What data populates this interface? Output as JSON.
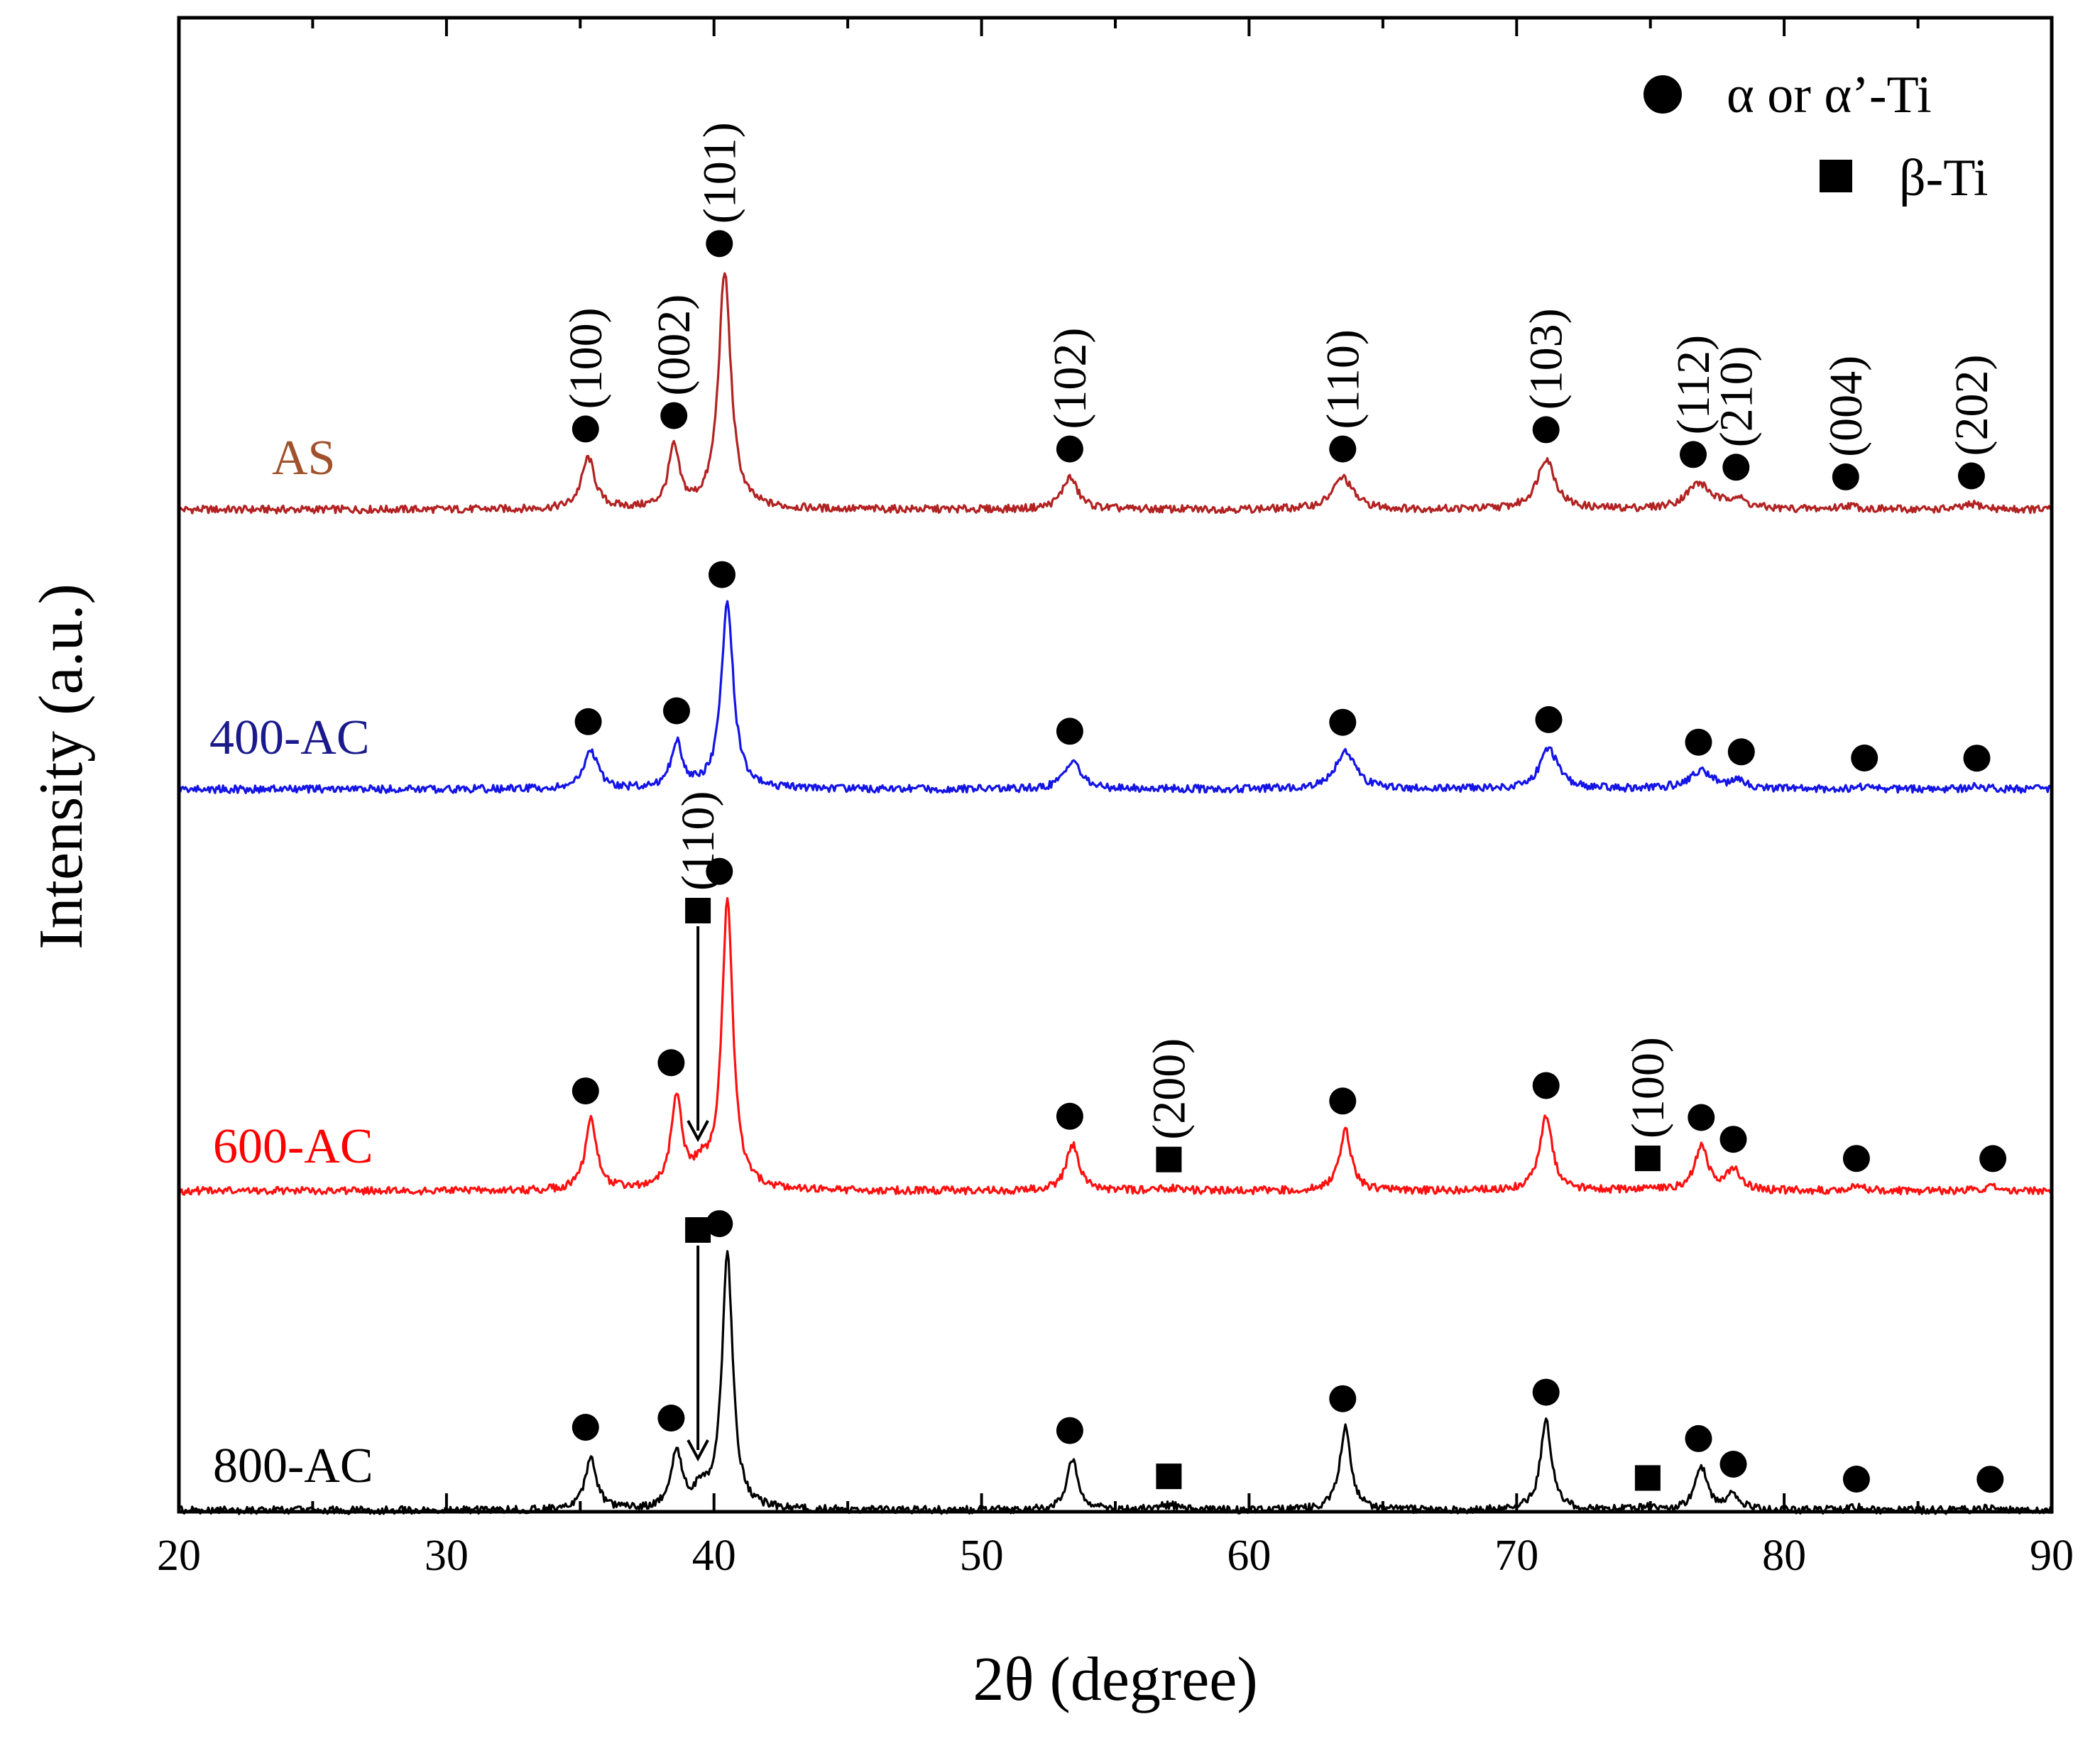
{
  "chart_data": {
    "type": "line",
    "title": "",
    "xlabel": "2θ (degree)",
    "ylabel": "Intensity (a.u.)",
    "xlim": [
      20,
      90
    ],
    "xticks": [
      20,
      30,
      40,
      50,
      60,
      70,
      80,
      90
    ],
    "yticks_shown": false,
    "legend": {
      "position": "top-right",
      "items": [
        {
          "marker": "circle",
          "label": "α or α’-Ti"
        },
        {
          "marker": "square",
          "label": "β-Ti"
        }
      ]
    },
    "series": [
      {
        "name": "AS",
        "color": "#b22222",
        "label_color": "#a0522d",
        "peaks": [
          {
            "x": 35.3,
            "h": 0.4,
            "w": 0.3
          },
          {
            "x": 38.5,
            "h": 0.47,
            "w": 0.25
          },
          {
            "x": 40.4,
            "h": 1.85,
            "w": 0.28
          },
          {
            "x": 53.3,
            "h": 0.25,
            "w": 0.35
          },
          {
            "x": 63.5,
            "h": 0.25,
            "w": 0.45
          },
          {
            "x": 71.1,
            "h": 0.4,
            "w": 0.4
          },
          {
            "x": 76.8,
            "h": 0.2,
            "w": 0.55
          },
          {
            "x": 78.2,
            "h": 0.08,
            "w": 0.4
          },
          {
            "x": 82.4,
            "h": 0.03,
            "w": 0.4
          },
          {
            "x": 87.1,
            "h": 0.04,
            "w": 0.4
          }
        ]
      },
      {
        "name": "400-AC",
        "color": "#1414e6",
        "label_color": "#1a1a8c",
        "peaks": [
          {
            "x": 35.4,
            "h": 0.3,
            "w": 0.3
          },
          {
            "x": 38.6,
            "h": 0.36,
            "w": 0.25
          },
          {
            "x": 40.5,
            "h": 1.45,
            "w": 0.27
          },
          {
            "x": 53.4,
            "h": 0.23,
            "w": 0.35
          },
          {
            "x": 63.6,
            "h": 0.3,
            "w": 0.45
          },
          {
            "x": 71.2,
            "h": 0.32,
            "w": 0.4
          },
          {
            "x": 76.9,
            "h": 0.14,
            "w": 0.55
          },
          {
            "x": 78.3,
            "h": 0.05,
            "w": 0.4
          },
          {
            "x": 83.0,
            "h": 0.02,
            "w": 0.4
          },
          {
            "x": 87.2,
            "h": 0.02,
            "w": 0.4
          }
        ]
      },
      {
        "name": "600-AC",
        "color": "#ff1010",
        "label_color": "#ff0000",
        "peaks": [
          {
            "x": 35.4,
            "h": 0.55,
            "w": 0.26
          },
          {
            "x": 38.6,
            "h": 0.72,
            "w": 0.24
          },
          {
            "x": 39.5,
            "h": 0.15,
            "w": 0.35
          },
          {
            "x": 40.5,
            "h": 2.25,
            "w": 0.25
          },
          {
            "x": 53.4,
            "h": 0.36,
            "w": 0.28
          },
          {
            "x": 57.0,
            "h": 0.02,
            "w": 0.5
          },
          {
            "x": 63.6,
            "h": 0.48,
            "w": 0.26
          },
          {
            "x": 71.1,
            "h": 0.6,
            "w": 0.28
          },
          {
            "x": 74.9,
            "h": 0.02,
            "w": 0.5
          },
          {
            "x": 76.9,
            "h": 0.34,
            "w": 0.3
          },
          {
            "x": 78.1,
            "h": 0.16,
            "w": 0.3
          },
          {
            "x": 82.7,
            "h": 0.03,
            "w": 0.4
          },
          {
            "x": 87.8,
            "h": 0.03,
            "w": 0.4
          }
        ]
      },
      {
        "name": "800-AC",
        "color": "#000000",
        "label_color": "#000000",
        "peaks": [
          {
            "x": 35.4,
            "h": 0.42,
            "w": 0.25
          },
          {
            "x": 38.6,
            "h": 0.45,
            "w": 0.24
          },
          {
            "x": 39.5,
            "h": 0.12,
            "w": 0.35
          },
          {
            "x": 40.5,
            "h": 2.0,
            "w": 0.24
          },
          {
            "x": 53.4,
            "h": 0.4,
            "w": 0.26
          },
          {
            "x": 57.0,
            "h": 0.04,
            "w": 0.5
          },
          {
            "x": 63.6,
            "h": 0.65,
            "w": 0.25
          },
          {
            "x": 71.1,
            "h": 0.7,
            "w": 0.25
          },
          {
            "x": 74.9,
            "h": 0.02,
            "w": 0.5
          },
          {
            "x": 76.9,
            "h": 0.33,
            "w": 0.28
          },
          {
            "x": 78.1,
            "h": 0.12,
            "w": 0.28
          },
          {
            "x": 82.7,
            "h": 0.02,
            "w": 0.4
          },
          {
            "x": 87.6,
            "h": 0.02,
            "w": 0.4
          }
        ]
      }
    ],
    "markers": {
      "AS": [
        {
          "x": 35.2,
          "shape": "circle"
        },
        {
          "x": 38.5,
          "shape": "circle"
        },
        {
          "x": 40.2,
          "shape": "circle"
        },
        {
          "x": 53.3,
          "shape": "circle"
        },
        {
          "x": 63.5,
          "shape": "circle"
        },
        {
          "x": 71.1,
          "shape": "circle"
        },
        {
          "x": 76.6,
          "shape": "circle"
        },
        {
          "x": 78.2,
          "shape": "circle"
        },
        {
          "x": 82.3,
          "shape": "circle"
        },
        {
          "x": 87.0,
          "shape": "circle"
        }
      ],
      "400-AC": [
        {
          "x": 35.3,
          "shape": "circle"
        },
        {
          "x": 38.6,
          "shape": "circle"
        },
        {
          "x": 40.3,
          "shape": "circle"
        },
        {
          "x": 53.3,
          "shape": "circle"
        },
        {
          "x": 63.5,
          "shape": "circle"
        },
        {
          "x": 71.2,
          "shape": "circle"
        },
        {
          "x": 76.8,
          "shape": "circle"
        },
        {
          "x": 78.4,
          "shape": "circle"
        },
        {
          "x": 83.0,
          "shape": "circle"
        },
        {
          "x": 87.2,
          "shape": "circle"
        }
      ],
      "600-AC": [
        {
          "x": 35.2,
          "shape": "circle"
        },
        {
          "x": 38.4,
          "shape": "circle"
        },
        {
          "x": 39.4,
          "shape": "square"
        },
        {
          "x": 40.2,
          "shape": "circle"
        },
        {
          "x": 53.3,
          "shape": "circle"
        },
        {
          "x": 57.0,
          "shape": "square"
        },
        {
          "x": 63.5,
          "shape": "circle"
        },
        {
          "x": 71.1,
          "shape": "circle"
        },
        {
          "x": 74.9,
          "shape": "square"
        },
        {
          "x": 76.9,
          "shape": "circle"
        },
        {
          "x": 78.1,
          "shape": "circle"
        },
        {
          "x": 82.7,
          "shape": "circle"
        },
        {
          "x": 87.8,
          "shape": "circle"
        }
      ],
      "800-AC": [
        {
          "x": 35.2,
          "shape": "circle"
        },
        {
          "x": 38.4,
          "shape": "circle"
        },
        {
          "x": 39.4,
          "shape": "square"
        },
        {
          "x": 40.2,
          "shape": "circle"
        },
        {
          "x": 53.3,
          "shape": "circle"
        },
        {
          "x": 57.0,
          "shape": "square"
        },
        {
          "x": 63.5,
          "shape": "circle"
        },
        {
          "x": 71.1,
          "shape": "circle"
        },
        {
          "x": 74.9,
          "shape": "square"
        },
        {
          "x": 76.8,
          "shape": "circle"
        },
        {
          "x": 78.1,
          "shape": "circle"
        },
        {
          "x": 82.7,
          "shape": "circle"
        },
        {
          "x": 87.7,
          "shape": "circle"
        }
      ]
    },
    "annotations": [
      {
        "series": "AS",
        "x": 35.2,
        "text": "(100)"
      },
      {
        "series": "AS",
        "x": 38.5,
        "text": "(002)"
      },
      {
        "series": "AS",
        "x": 40.2,
        "text": "(101)"
      },
      {
        "series": "AS",
        "x": 53.3,
        "text": "(102)"
      },
      {
        "series": "AS",
        "x": 63.5,
        "text": "(110)"
      },
      {
        "series": "AS",
        "x": 71.1,
        "text": "(103)"
      },
      {
        "series": "AS",
        "x": 76.6,
        "text": "(112)"
      },
      {
        "series": "AS",
        "x": 78.2,
        "text": "(210)"
      },
      {
        "series": "AS",
        "x": 82.3,
        "text": "(004)"
      },
      {
        "series": "AS",
        "x": 87.0,
        "text": "(202)"
      },
      {
        "series": "600-AC",
        "x": 39.4,
        "text": "(110)"
      },
      {
        "series": "600-AC",
        "x": 57.0,
        "text": "(200)"
      },
      {
        "series": "600-AC",
        "x": 74.9,
        "text": "(100)"
      }
    ]
  }
}
